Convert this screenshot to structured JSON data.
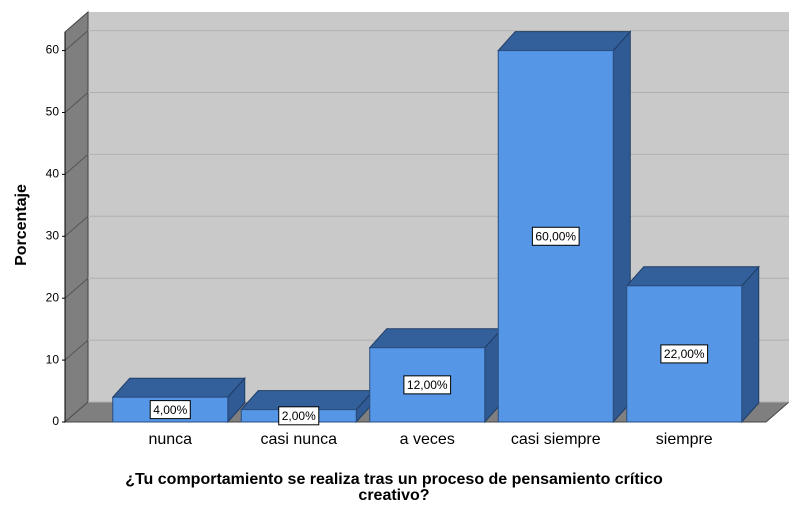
{
  "chart_data": {
    "type": "bar3d",
    "categories": [
      "nunca",
      "casi nunca",
      "a veces",
      "casi siempre",
      "siempre"
    ],
    "values": [
      4,
      2,
      12,
      60,
      22
    ],
    "value_labels": [
      "4,00%",
      "2,00%",
      "12,00%",
      "60,00%",
      "22,00%"
    ],
    "color": "#5596e6",
    "ylabel": "Porcentaje",
    "xlabel": "¿Tu comportamiento se realiza tras un proceso de pensamiento crítico creativo?",
    "ylim": [
      0,
      63
    ],
    "yticks": [
      0,
      10,
      20,
      30,
      40,
      50,
      60
    ],
    "grid": true
  }
}
